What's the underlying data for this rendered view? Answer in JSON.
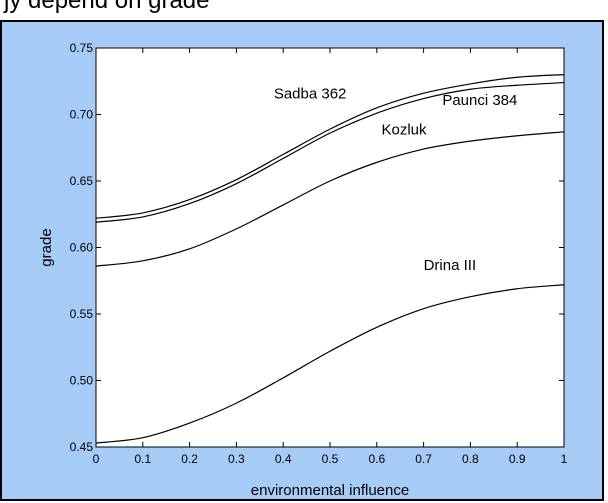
{
  "caption": "jy depend on grade",
  "chart_data": {
    "type": "line",
    "title": "",
    "xlabel": "environmental influence",
    "ylabel": "grade",
    "xlim": [
      0,
      1
    ],
    "ylim": [
      0.45,
      0.75
    ],
    "xticks": [
      0,
      0.1,
      0.2,
      0.3,
      0.4,
      0.5,
      0.6,
      0.7,
      0.8,
      0.9,
      1
    ],
    "xtick_labels": [
      "0",
      "0.1",
      "0.2",
      "0.3",
      "0.4",
      "0.5",
      "0.6",
      "0.7",
      "0.8",
      "0.9",
      "1"
    ],
    "yticks": [
      0.45,
      0.5,
      0.55,
      0.6,
      0.65,
      0.7,
      0.75
    ],
    "ytick_labels": [
      "0.45",
      "0.50",
      "0.55",
      "0.60",
      "0.65",
      "0.70",
      "0.75"
    ],
    "grid": false,
    "x": [
      0,
      0.1,
      0.2,
      0.3,
      0.4,
      0.5,
      0.6,
      0.7,
      0.8,
      0.9,
      1.0
    ],
    "series": [
      {
        "name": "Sadba 362",
        "label_at": [
          0.38,
          0.712
        ],
        "values": [
          0.622,
          0.626,
          0.636,
          0.651,
          0.67,
          0.689,
          0.705,
          0.716,
          0.723,
          0.728,
          0.73
        ]
      },
      {
        "name": "Paunci 384",
        "label_at": [
          0.74,
          0.707
        ],
        "values": [
          0.619,
          0.623,
          0.633,
          0.648,
          0.667,
          0.686,
          0.701,
          0.712,
          0.719,
          0.722,
          0.724
        ]
      },
      {
        "name": "Kozluk",
        "label_at": [
          0.61,
          0.685
        ],
        "values": [
          0.586,
          0.59,
          0.599,
          0.614,
          0.632,
          0.65,
          0.664,
          0.674,
          0.68,
          0.684,
          0.687
        ]
      },
      {
        "name": "Drina III",
        "label_at": [
          0.7,
          0.583
        ],
        "values": [
          0.453,
          0.457,
          0.468,
          0.483,
          0.502,
          0.522,
          0.54,
          0.554,
          0.563,
          0.569,
          0.572
        ]
      }
    ]
  }
}
